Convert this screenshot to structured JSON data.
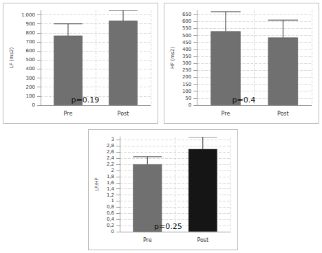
{
  "chart_data": [
    {
      "type": "bar",
      "ylabel": "LF (ms2)",
      "categories": [
        "Pre",
        "Post"
      ],
      "values": [
        770,
        935
      ],
      "errors": [
        130,
        115
      ],
      "colors": [
        "#707070",
        "#707070"
      ],
      "ylim": [
        0,
        1050
      ],
      "yticks": [
        0,
        100,
        200,
        300,
        400,
        500,
        600,
        700,
        800,
        900,
        {
          "value": 1000,
          "label": "1.000"
        }
      ],
      "annotation": "p=0.19",
      "grid": true
    },
    {
      "type": "bar",
      "ylabel": "HF (ms2)",
      "categories": [
        "Pre",
        "Post"
      ],
      "values": [
        530,
        485
      ],
      "errors": [
        140,
        125
      ],
      "colors": [
        "#707070",
        "#707070"
      ],
      "ylim": [
        0,
        680
      ],
      "yticks": [
        0,
        50,
        100,
        150,
        200,
        250,
        300,
        350,
        400,
        450,
        500,
        550,
        600,
        650
      ],
      "annotation": "p=0.4",
      "grid": true
    },
    {
      "type": "bar",
      "ylabel": "LF/HF",
      "categories": [
        "Pre",
        "Post"
      ],
      "values": [
        2.2,
        2.7
      ],
      "errors": [
        0.25,
        0.4
      ],
      "colors": [
        "#707070",
        "#151515"
      ],
      "ylim": [
        0,
        3.1
      ],
      "yticks": [
        0,
        {
          "value": 0.2,
          "label": "0,2"
        },
        {
          "value": 0.4,
          "label": "0,4"
        },
        {
          "value": 0.6,
          "label": "0,6"
        },
        {
          "value": 0.8,
          "label": "0,8"
        },
        1,
        {
          "value": 1.2,
          "label": "1,2"
        },
        {
          "value": 1.4,
          "label": "1,4"
        },
        {
          "value": 1.6,
          "label": "1,6"
        },
        {
          "value": 1.8,
          "label": "1,8"
        },
        2,
        {
          "value": 2.2,
          "label": "2,2"
        },
        {
          "value": 2.4,
          "label": "2,4"
        },
        {
          "value": 2.6,
          "label": "2,6"
        },
        {
          "value": 2.8,
          "label": "2,8"
        },
        3
      ],
      "annotation": "p=0.25",
      "grid": true
    }
  ]
}
